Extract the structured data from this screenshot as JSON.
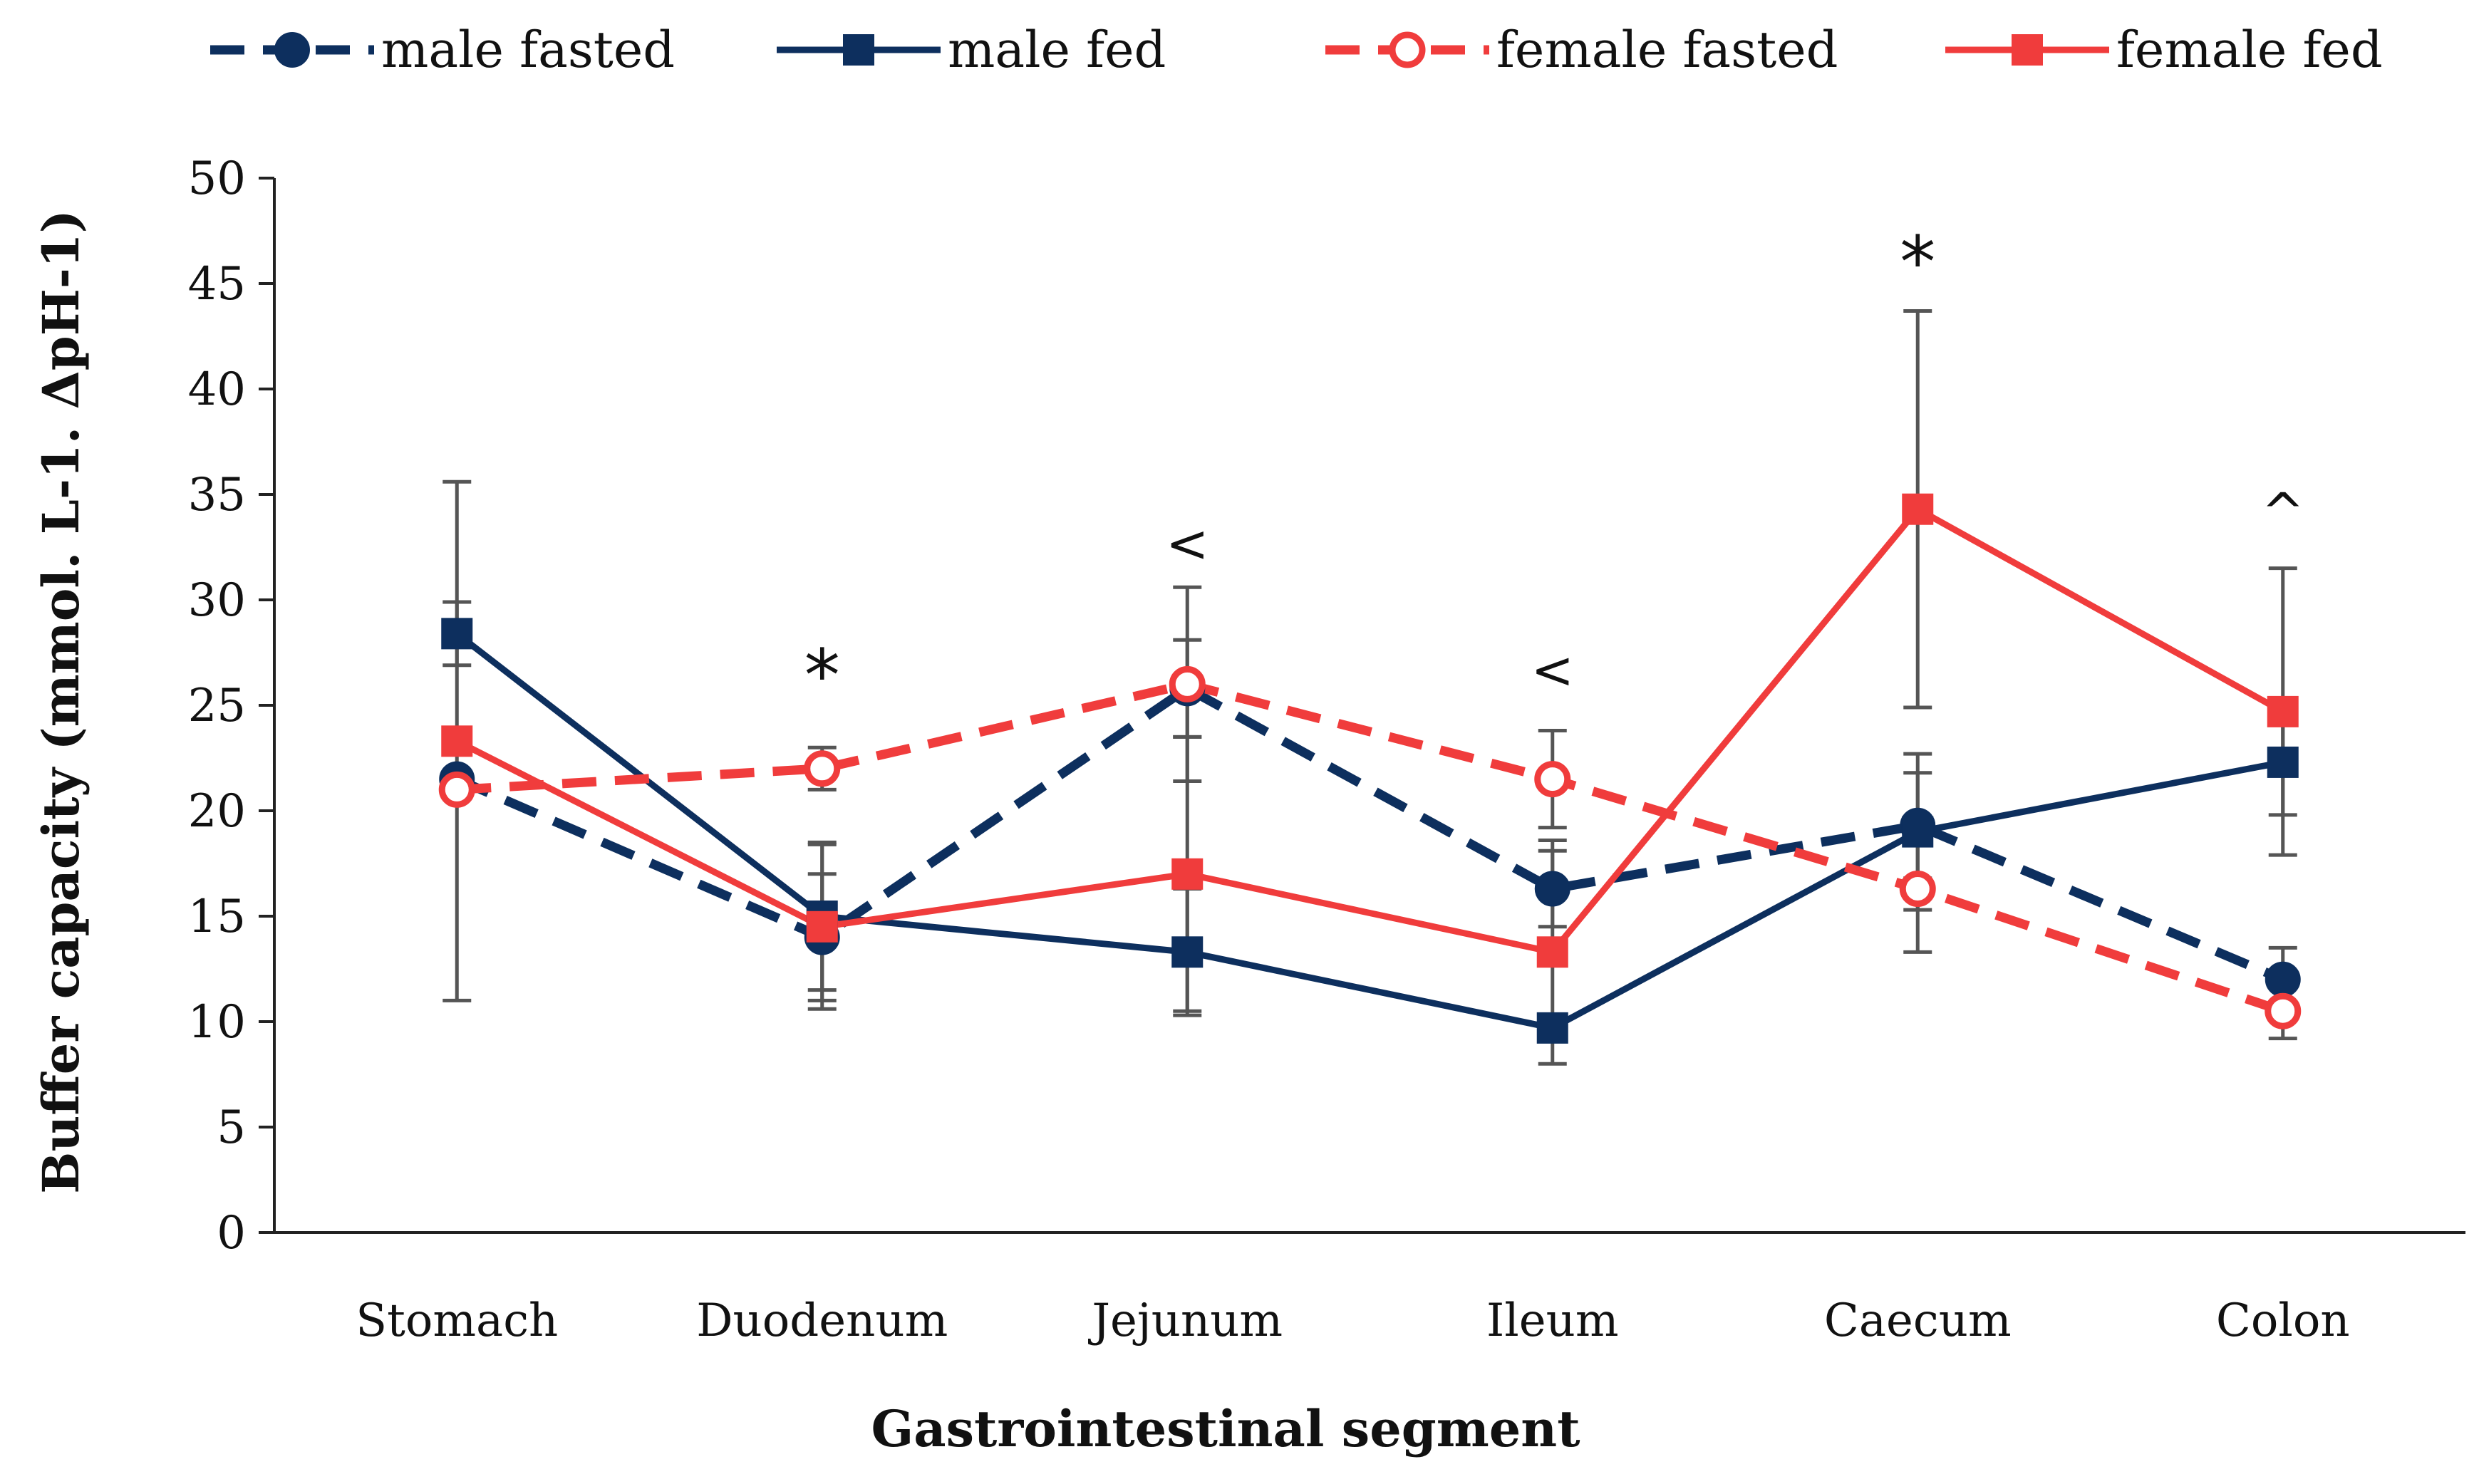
{
  "chart_data": {
    "type": "line",
    "title": "",
    "xlabel": "Gastrointestinal segment",
    "ylabel": "Buffer capacity (mmol. L-1. ΔpH-1)",
    "categories": [
      "Stomach",
      "Duodenum",
      "Jejunum",
      "Ileum",
      "Caecum",
      "Colon"
    ],
    "ylim": [
      0,
      50
    ],
    "yticks": [
      0,
      5,
      10,
      15,
      20,
      25,
      30,
      35,
      40,
      45,
      50
    ],
    "grid": false,
    "legend_position": "top",
    "series": [
      {
        "name": "male fasted",
        "color": "#0d2f5e",
        "line_style": "dashed",
        "marker": "filled-circle",
        "values": [
          21.5,
          14.0,
          25.8,
          16.3,
          19.3,
          12.0
        ],
        "error": [
          0,
          3.0,
          2.3,
          1.8,
          2.5,
          1.5
        ]
      },
      {
        "name": "male fed",
        "color": "#0d2f5e",
        "line_style": "solid",
        "marker": "filled-square",
        "values": [
          28.4,
          15.0,
          13.3,
          9.7,
          19.0,
          22.3
        ],
        "error": [
          1.5,
          3.5,
          3.0,
          0,
          3.7,
          2.5
        ]
      },
      {
        "name": "female fasted",
        "color": "#f03c3c",
        "line_style": "dashed",
        "marker": "open-circle",
        "values": [
          21.0,
          22.0,
          26.0,
          21.5,
          16.3,
          10.5
        ],
        "error": [
          0,
          1.0,
          4.6,
          2.3,
          3.0,
          1.3
        ]
      },
      {
        "name": "female fed",
        "color": "#f03c3c",
        "line_style": "solid",
        "marker": "filled-square",
        "values": [
          23.3,
          14.5,
          17.0,
          13.3,
          34.3,
          24.7
        ],
        "error": [
          12.3,
          3.9,
          6.5,
          5.3,
          9.4,
          6.8
        ]
      }
    ],
    "error_bar_color": "#555555",
    "annotations": [
      {
        "category": "Duodenum",
        "text": "*",
        "y": 26.6
      },
      {
        "category": "Jejunum",
        "text": "<",
        "y": 32.5
      },
      {
        "category": "Ileum",
        "text": "<",
        "y": 26.5
      },
      {
        "category": "Caecum",
        "text": "*",
        "y": 46.2
      },
      {
        "category": "Colon",
        "text": "^",
        "y": 34.0
      }
    ]
  }
}
